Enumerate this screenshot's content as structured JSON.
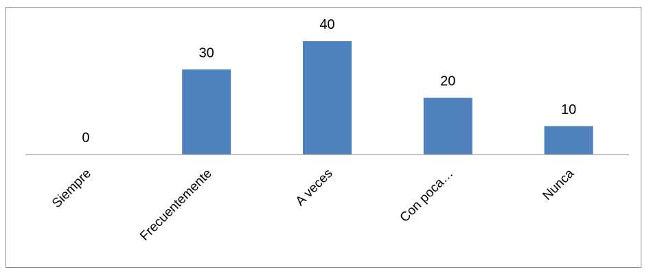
{
  "chart_data": {
    "type": "bar",
    "categories": [
      "Siempre",
      "Frecuentemente",
      "A veces",
      "Con poca…",
      "Nunca"
    ],
    "values": [
      0,
      30,
      40,
      20,
      10
    ],
    "data_labels": [
      "0",
      "30",
      "40",
      "20",
      "10"
    ],
    "title": "",
    "xlabel": "",
    "ylabel": "",
    "ylim": [
      0,
      40
    ],
    "grid": false,
    "legend": "none",
    "bar_color": "#4f81bd",
    "axis_color": "#868686"
  }
}
